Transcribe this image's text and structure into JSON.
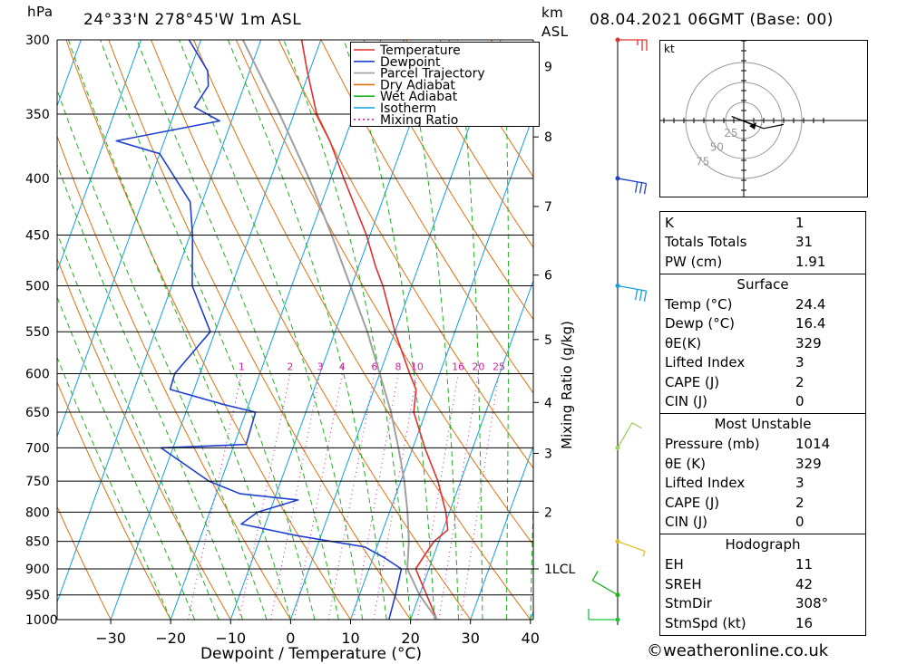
{
  "header": {
    "pressure_unit": "hPa",
    "location": "24°33'N 278°45'W 1m ASL",
    "km_unit": "km",
    "asl_label": "ASL",
    "datetime": "08.04.2021 06GMT (Base: 00)"
  },
  "colors": {
    "temperature": "#e03030",
    "dewpoint": "#2040d0",
    "parcel": "#a0a0a0",
    "dry_adiabat": "#e07010",
    "wet_adiabat": "#20b020",
    "isotherm": "#10a0e0",
    "mixing_ratio": "#d020a0",
    "wind_barb": "#40a020"
  },
  "chart_data": {
    "type": "line",
    "title": "24°33'N 278°45'W 1m ASL",
    "xlabel": "Dewpoint / Temperature (°C)",
    "ylabel": "hPa",
    "right_label": "Mixing Ratio (g/kg)",
    "xlim": [
      -40,
      40
    ],
    "ylim": [
      1000,
      300
    ],
    "x_ticks": [
      -30,
      -20,
      -10,
      0,
      10,
      20,
      30,
      40
    ],
    "pressure_levels": [
      300,
      350,
      400,
      450,
      500,
      550,
      600,
      650,
      700,
      750,
      800,
      850,
      900,
      950,
      1000
    ],
    "km_ticks": [
      {
        "label": "9",
        "p": 317
      },
      {
        "label": "8",
        "p": 367
      },
      {
        "label": "7",
        "p": 424
      },
      {
        "label": "6",
        "p": 489
      },
      {
        "label": "5",
        "p": 559
      },
      {
        "label": "4",
        "p": 637
      },
      {
        "label": "3",
        "p": 708
      },
      {
        "label": "2",
        "p": 800
      },
      {
        "label": "1LCL",
        "p": 900
      }
    ],
    "mixing_ratio_labels": [
      "1",
      "2",
      "3",
      "4",
      "6",
      "8",
      "10",
      "16",
      "20",
      "25"
    ],
    "mixing_ratio_values": [
      1,
      2,
      3,
      4,
      6,
      8,
      10,
      16,
      20,
      25
    ],
    "legend": [
      "Temperature",
      "Dewpoint",
      "Parcel Trajectory",
      "Dry Adiabat",
      "Wet Adiabat",
      "Isotherm",
      "Mixing Ratio"
    ],
    "series": [
      {
        "name": "Temperature",
        "points": [
          [
            1014,
            24.4
          ],
          [
            950,
            21.2
          ],
          [
            900,
            17.8
          ],
          [
            870,
            18.6
          ],
          [
            850,
            19.2
          ],
          [
            830,
            20.8
          ],
          [
            800,
            19.4
          ],
          [
            750,
            16.2
          ],
          [
            700,
            12.0
          ],
          [
            650,
            8.0
          ],
          [
            620,
            7.0
          ],
          [
            600,
            5.0
          ],
          [
            550,
            0.0
          ],
          [
            500,
            -4.8
          ],
          [
            480,
            -7.2
          ],
          [
            450,
            -10.6
          ],
          [
            400,
            -17.8
          ],
          [
            370,
            -22.4
          ],
          [
            350,
            -26.2
          ],
          [
            320,
            -30.4
          ],
          [
            300,
            -33.2
          ]
        ]
      },
      {
        "name": "Dewpoint",
        "points": [
          [
            1014,
            16.4
          ],
          [
            950,
            16.0
          ],
          [
            900,
            15.4
          ],
          [
            880,
            12.0
          ],
          [
            860,
            8.0
          ],
          [
            840,
            -4.0
          ],
          [
            820,
            -14.0
          ],
          [
            800,
            -12.0
          ],
          [
            780,
            -6.0
          ],
          [
            770,
            -16.0
          ],
          [
            750,
            -22.0
          ],
          [
            700,
            -32.0
          ],
          [
            695,
            -18.0
          ],
          [
            650,
            -18.4
          ],
          [
            640,
            -24.0
          ],
          [
            620,
            -34.0
          ],
          [
            600,
            -34.2
          ],
          [
            550,
            -30.8
          ],
          [
            500,
            -36.6
          ],
          [
            450,
            -39.6
          ],
          [
            420,
            -42.0
          ],
          [
            380,
            -50.0
          ],
          [
            370,
            -58.0
          ],
          [
            355,
            -42.0
          ],
          [
            345,
            -47.0
          ],
          [
            330,
            -46.0
          ],
          [
            320,
            -47.0
          ],
          [
            300,
            -52.0
          ]
        ]
      },
      {
        "name": "Parcel Trajectory",
        "points": [
          [
            1014,
            24.4
          ],
          [
            950,
            20.0
          ],
          [
            900,
            16.4
          ],
          [
            850,
            15.0
          ],
          [
            800,
            13.0
          ],
          [
            750,
            10.6
          ],
          [
            700,
            7.6
          ],
          [
            650,
            4.2
          ],
          [
            600,
            0.0
          ],
          [
            550,
            -4.6
          ],
          [
            500,
            -10.2
          ],
          [
            450,
            -16.4
          ],
          [
            400,
            -23.6
          ],
          [
            350,
            -32.4
          ],
          [
            300,
            -43.0
          ]
        ]
      }
    ],
    "wind_barbs": [
      {
        "p": 1000,
        "dir": 90,
        "speed": 10
      },
      {
        "p": 950,
        "dir": 120,
        "speed": 10
      },
      {
        "p": 850,
        "dir": 290,
        "speed": 5
      },
      {
        "p": 700,
        "dir": 210,
        "speed": 10
      },
      {
        "p": 500,
        "dir": 280,
        "speed": 30
      },
      {
        "p": 400,
        "dir": 280,
        "speed": 30
      },
      {
        "p": 300,
        "dir": 270,
        "speed": 25
      }
    ],
    "hodograph": {
      "unit_label": "kt",
      "ring_labels": [
        "25",
        "50",
        "75"
      ],
      "points": [
        [
          0,
          0
        ],
        [
          0.04,
          -0.02
        ],
        [
          -0.06,
          0.02
        ],
        [
          0.1,
          -0.04
        ],
        [
          0.2,
          -0.02
        ]
      ]
    }
  },
  "indices": {
    "k": {
      "label": "K",
      "value": "1"
    },
    "totals": {
      "label": "Totals Totals",
      "value": "31"
    },
    "pw": {
      "label": "PW (cm)",
      "value": "1.91"
    },
    "surface": {
      "title": "Surface",
      "rows": [
        {
          "label": "Temp (°C)",
          "value": "24.4"
        },
        {
          "label": "Dewp (°C)",
          "value": "16.4"
        },
        {
          "label": "θE(K)",
          "value": "329"
        },
        {
          "label": "Lifted Index",
          "value": "3"
        },
        {
          "label": "CAPE (J)",
          "value": "2"
        },
        {
          "label": "CIN (J)",
          "value": "0"
        }
      ]
    },
    "most_unstable": {
      "title": "Most Unstable",
      "rows": [
        {
          "label": "Pressure (mb)",
          "value": "1014"
        },
        {
          "label": "θE (K)",
          "value": "329"
        },
        {
          "label": "Lifted Index",
          "value": "3"
        },
        {
          "label": "CAPE (J)",
          "value": "2"
        },
        {
          "label": "CIN (J)",
          "value": "0"
        }
      ]
    },
    "hodograph": {
      "title": "Hodograph",
      "rows": [
        {
          "label": "EH",
          "value": "11"
        },
        {
          "label": "SREH",
          "value": "42"
        },
        {
          "label": "StmDir",
          "value": "308°"
        },
        {
          "label": "StmSpd (kt)",
          "value": "16"
        }
      ]
    }
  },
  "footer": {
    "credit": "©weatheronline.co.uk"
  }
}
